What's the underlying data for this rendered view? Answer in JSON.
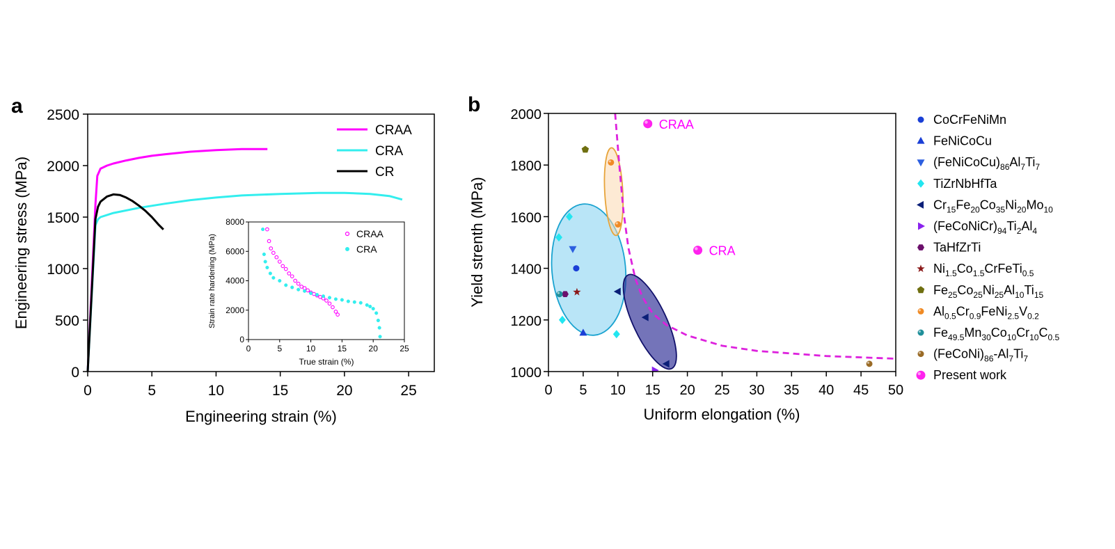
{
  "chart_data": [
    {
      "panel": "a",
      "type": "line",
      "xlabel": "Engineering strain (%)",
      "ylabel": "Engineering stress (MPa)",
      "xlim": [
        0,
        27
      ],
      "ylim": [
        0,
        2500
      ],
      "xticks": [
        0,
        5,
        10,
        15,
        20,
        25
      ],
      "yticks": [
        0,
        500,
        1000,
        1500,
        2000,
        2500
      ],
      "legend_position": "top-right",
      "series": [
        {
          "name": "CRAA",
          "color": "#ff00ff",
          "x": [
            0,
            0.6,
            0.75,
            1,
            1.5,
            2,
            3,
            4,
            5,
            6,
            8,
            10,
            12,
            14
          ],
          "y": [
            0,
            1620,
            1900,
            1970,
            2000,
            2020,
            2050,
            2075,
            2095,
            2110,
            2135,
            2150,
            2160,
            2160
          ]
        },
        {
          "name": "CRA",
          "color": "#33eeee",
          "x": [
            0,
            0.6,
            0.8,
            1,
            2,
            4,
            6,
            8,
            10,
            12,
            15,
            18,
            20,
            22,
            23.5,
            24.5
          ],
          "y": [
            0,
            1420,
            1480,
            1500,
            1540,
            1590,
            1630,
            1665,
            1690,
            1710,
            1725,
            1735,
            1735,
            1725,
            1705,
            1670
          ]
        },
        {
          "name": "CR",
          "color": "#000000",
          "x": [
            0,
            0.6,
            0.8,
            1,
            1.5,
            2,
            2.5,
            3,
            3.5,
            4,
            4.5,
            5,
            5.5,
            5.9
          ],
          "y": [
            0,
            1480,
            1600,
            1650,
            1700,
            1720,
            1715,
            1690,
            1655,
            1610,
            1560,
            1500,
            1430,
            1380
          ]
        }
      ],
      "inset": {
        "type": "scatter",
        "xlabel": "True strain (%)",
        "ylabel": "Strain rate hardening (MPa)",
        "xlim": [
          0,
          25
        ],
        "ylim": [
          0,
          8000
        ],
        "xticks": [
          0,
          5,
          10,
          15,
          20,
          25
        ],
        "yticks": [
          0,
          2000,
          4000,
          6000,
          8000
        ],
        "series": [
          {
            "name": "CRAA",
            "color": "#ff00ff",
            "points": [
              [
                3.0,
                7500
              ],
              [
                3.3,
                6700
              ],
              [
                3.6,
                6200
              ],
              [
                4,
                5900
              ],
              [
                4.5,
                5600
              ],
              [
                5,
                5300
              ],
              [
                5.5,
                5000
              ],
              [
                6,
                4800
              ],
              [
                6.5,
                4500
              ],
              [
                7,
                4300
              ],
              [
                7.5,
                4000
              ],
              [
                8,
                3800
              ],
              [
                8.5,
                3600
              ],
              [
                9,
                3500
              ],
              [
                9.5,
                3350
              ],
              [
                10,
                3200
              ],
              [
                10.5,
                3100
              ],
              [
                11,
                3000
              ],
              [
                11.5,
                2900
              ],
              [
                12,
                2800
              ],
              [
                12.5,
                2650
              ],
              [
                13,
                2450
              ],
              [
                13.5,
                2200
              ],
              [
                14,
                1900
              ],
              [
                14.3,
                1700
              ]
            ]
          },
          {
            "name": "CRA",
            "color": "#33eeee",
            "points": [
              [
                2.3,
                7500
              ],
              [
                2.5,
                5800
              ],
              [
                2.7,
                5300
              ],
              [
                3,
                4900
              ],
              [
                3.5,
                4500
              ],
              [
                4,
                4200
              ],
              [
                5,
                4000
              ],
              [
                6,
                3700
              ],
              [
                7,
                3550
              ],
              [
                8,
                3400
              ],
              [
                9,
                3300
              ],
              [
                10,
                3150
              ],
              [
                11,
                3050
              ],
              [
                12,
                2950
              ],
              [
                13,
                2850
              ],
              [
                14,
                2750
              ],
              [
                15,
                2700
              ],
              [
                16,
                2600
              ],
              [
                17,
                2550
              ],
              [
                18,
                2500
              ],
              [
                19,
                2350
              ],
              [
                19.5,
                2250
              ],
              [
                20,
                2100
              ],
              [
                20.5,
                1800
              ],
              [
                20.8,
                1300
              ],
              [
                21,
                800
              ],
              [
                21.1,
                200
              ]
            ]
          }
        ]
      }
    },
    {
      "panel": "b",
      "type": "scatter",
      "xlabel": "Uniform elongation (%)",
      "ylabel": "Yield strenth (MPa)",
      "xlim": [
        0,
        50
      ],
      "ylim": [
        1000,
        2000
      ],
      "xticks": [
        0,
        5,
        10,
        15,
        20,
        25,
        30,
        35,
        40,
        45,
        50
      ],
      "yticks": [
        1000,
        1200,
        1400,
        1600,
        1800,
        2000
      ],
      "legend_position": "right",
      "series": [
        {
          "name": "CoCrFeNiMn",
          "legend_name": [
            "CoCrFeNiMn"
          ],
          "marker": "circle",
          "color": "#1a3fd6",
          "points": [
            [
              4,
              1400
            ]
          ]
        },
        {
          "name": "FeNiCoCu",
          "legend_name": [
            "FeNiCoCu"
          ],
          "marker": "triangle-up",
          "color": "#1a3fd6",
          "points": [
            [
              5,
              1150
            ]
          ]
        },
        {
          "name": "(FeNiCoCu)86Al7Ti7",
          "legend_name": [
            "(FeNiCoCu)",
            "86",
            "Al",
            "7",
            "Ti",
            "7"
          ],
          "marker": "triangle-down",
          "color": "#2c5fe0",
          "points": [
            [
              3.5,
              1475
            ]
          ]
        },
        {
          "name": "TiZrNbHfTa",
          "legend_name": [
            "TiZrNbHfTa"
          ],
          "marker": "diamond",
          "color": "#22e6f0",
          "points": [
            [
              3,
              1600
            ],
            [
              1.5,
              1520
            ],
            [
              2,
              1200
            ],
            [
              9.8,
              1145
            ]
          ]
        },
        {
          "name": "Cr15Fe20Co35Ni20Mo10",
          "legend_name": [
            "Cr",
            "15",
            "Fe",
            "20",
            "Co",
            "35",
            "Ni",
            "20",
            "Mo",
            "10"
          ],
          "marker": "triangle-left",
          "color": "#0b1f78",
          "points": [
            [
              10,
              1310
            ],
            [
              14,
              1210
            ],
            [
              17,
              1030
            ]
          ]
        },
        {
          "name": "(FeCoNiCr)94Ti2Al4",
          "legend_name": [
            "(FeCoNiCr)",
            "94",
            "Ti",
            "2",
            "Al",
            "4"
          ],
          "marker": "triangle-right",
          "color": "#8a22ee",
          "points": [
            [
              15.3,
              1005
            ]
          ]
        },
        {
          "name": "TaHfZrTi",
          "legend_name": [
            "TaHfZrTi"
          ],
          "marker": "hexagon",
          "color": "#6b0f6b",
          "points": [
            [
              2.4,
              1300
            ]
          ]
        },
        {
          "name": "Ni1.5Co1.5CrFeTi0.5",
          "legend_name": [
            "Ni",
            "1.5",
            "Co",
            "1.5",
            "CrFeTi",
            "0.5"
          ],
          "marker": "star",
          "color": "#8b1a1a",
          "points": [
            [
              4.1,
              1308
            ]
          ]
        },
        {
          "name": "Fe25Co25Ni25Al10Ti15",
          "legend_name": [
            "Fe",
            "25",
            "Co",
            "25",
            "Ni",
            "25",
            "Al",
            "10",
            "Ti",
            "15"
          ],
          "marker": "pentagon",
          "color": "#6f6f10",
          "points": [
            [
              5.3,
              1860
            ]
          ]
        },
        {
          "name": "Al0.5Cr0.9FeNi2.5V0.2",
          "legend_name": [
            "Al",
            "0.5",
            "Cr",
            "0.9",
            "FeNi",
            "2.5",
            "V",
            "0.2"
          ],
          "marker": "ball",
          "color": "#f08a24",
          "points": [
            [
              9,
              1810
            ],
            [
              10,
              1570
            ]
          ]
        },
        {
          "name": "Fe49.5Mn30Co10Cr10C0.5",
          "legend_name": [
            "Fe",
            "49.5",
            "Mn",
            "30",
            "Co",
            "10",
            "Cr",
            "10",
            "C",
            "0.5"
          ],
          "marker": "ball",
          "color": "#1f8f9a",
          "points": [
            [
              1.6,
              1300
            ]
          ]
        },
        {
          "name": "(FeCoNi)86-Al7Ti7",
          "legend_name": [
            "(FeCoNi)",
            "86",
            "-Al",
            "7",
            "Ti",
            "7"
          ],
          "marker": "ball",
          "color": "#9a6b26",
          "points": [
            [
              46.2,
              1030
            ]
          ]
        },
        {
          "name": "Present work",
          "legend_name": [
            "Present work"
          ],
          "marker": "ball-large",
          "color": "#ff22ee",
          "points": [
            [
              14.3,
              1960
            ],
            [
              21.5,
              1470
            ]
          ]
        }
      ],
      "point_labels": [
        {
          "text": "CRAA",
          "color": "#ff00ff",
          "x": 14.3,
          "y": 1960
        },
        {
          "text": "CRA",
          "color": "#ff00ff",
          "x": 21.5,
          "y": 1470
        }
      ],
      "trend_curve": {
        "style": "dashed",
        "color": "#dd22dd",
        "x": [
          9.6,
          10.2,
          10.8,
          11.5,
          12.5,
          13.5,
          15,
          17,
          20,
          25,
          30,
          40,
          50
        ],
        "y": [
          2000,
          1800,
          1620,
          1480,
          1360,
          1290,
          1225,
          1180,
          1140,
          1100,
          1080,
          1060,
          1050
        ]
      },
      "ellipses": [
        {
          "color": "#7fd0f0",
          "stroke": "#1aa3d0",
          "cx": 5.8,
          "cy": 1395,
          "rx": 5.3,
          "ry": 255,
          "rotate": -5
        },
        {
          "color": "#fcd9b0",
          "stroke": "#e7a43a",
          "cx": 9.4,
          "cy": 1697,
          "rx": 1.3,
          "ry": 170,
          "rotate": -3
        },
        {
          "color": "#2a2a94",
          "stroke": "#10106a",
          "cx": 14.6,
          "cy": 1193,
          "rx": 2.4,
          "ry": 200,
          "rotate": -25
        }
      ]
    }
  ],
  "panel_labels": [
    "a",
    "b"
  ]
}
